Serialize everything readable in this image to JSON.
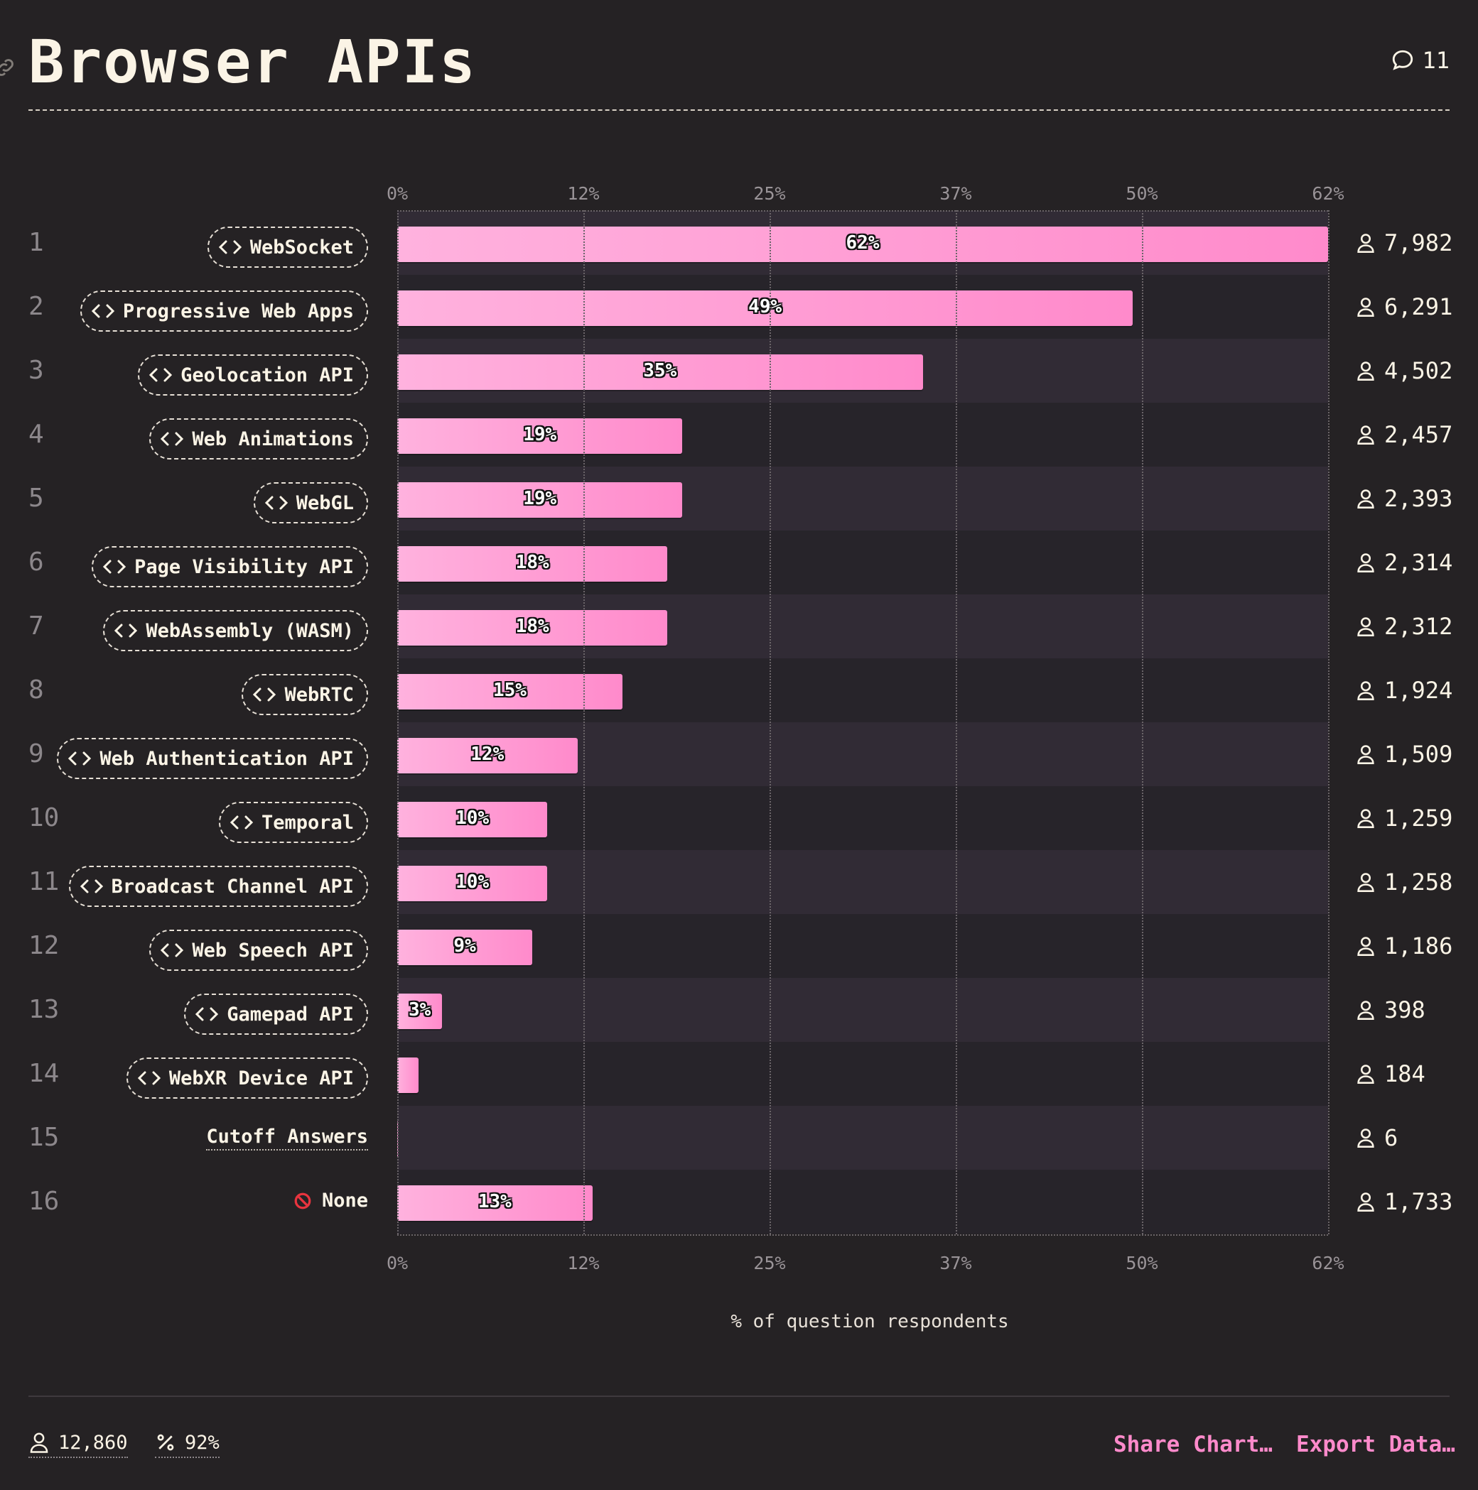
{
  "header": {
    "title": "Browser APIs",
    "comment_count": "11"
  },
  "chart_data": {
    "type": "bar",
    "orientation": "horizontal",
    "title": "Browser APIs",
    "xlabel": "% of question respondents",
    "xlim": [
      0,
      62
    ],
    "ticks": [
      "0%",
      "12%",
      "25%",
      "37%",
      "50%",
      "62%"
    ],
    "grid": true,
    "categories": [
      "WebSocket",
      "Progressive Web Apps",
      "Geolocation API",
      "Web Animations",
      "WebGL",
      "Page Visibility API",
      "WebAssembly (WASM)",
      "WebRTC",
      "Web Authentication API",
      "Temporal",
      "Broadcast Channel API",
      "Web Speech API",
      "Gamepad API",
      "WebXR Device API",
      "Cutoff Answers",
      "None"
    ],
    "values": [
      62,
      49,
      35,
      19,
      19,
      18,
      18,
      15,
      12,
      10,
      10,
      9,
      3,
      1.4,
      0.05,
      13
    ],
    "value_labels": [
      "62%",
      "49%",
      "35%",
      "19%",
      "19%",
      "18%",
      "18%",
      "15%",
      "12%",
      "10%",
      "10%",
      "9%",
      "3%",
      "",
      "",
      "13%"
    ],
    "counts": [
      "7,982",
      "6,291",
      "4,502",
      "2,457",
      "2,393",
      "2,314",
      "2,312",
      "1,924",
      "1,509",
      "1,259",
      "1,258",
      "1,186",
      "398",
      "184",
      "6",
      "1,733"
    ],
    "ranks": [
      "1",
      "2",
      "3",
      "4",
      "5",
      "6",
      "7",
      "8",
      "9",
      "10",
      "11",
      "12",
      "13",
      "14",
      "15",
      "16"
    ],
    "label_styles": [
      "pill",
      "pill",
      "pill",
      "pill",
      "pill",
      "pill",
      "pill",
      "pill",
      "pill",
      "pill",
      "pill",
      "pill",
      "pill",
      "pill",
      "plain",
      "none"
    ],
    "bar_color_start": "#ffb2de",
    "bar_color_end": "#ff8acb"
  },
  "footer": {
    "respondents": "12,860",
    "percent": "92%",
    "share_label": "Share Chart…",
    "export_label": "Export Data…"
  },
  "colors": {
    "background": "#252224",
    "accent": "#ff8acb",
    "text": "#fbf4e6"
  }
}
